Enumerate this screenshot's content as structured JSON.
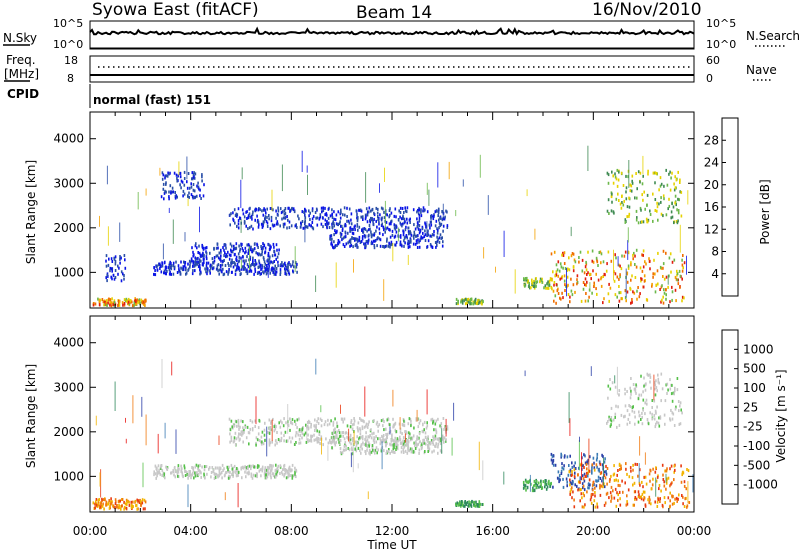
{
  "header": {
    "title": "Syowa East (fitACF)",
    "beam": "Beam 14",
    "date": "16/Nov/2010"
  },
  "top_panels": {
    "nsky_label": "N.Sky",
    "nsky_ticks": [
      "10^5",
      "10^0"
    ],
    "nsearch_label": "N.Search",
    "nsearch_ticks": [
      "10^5",
      "10^0"
    ],
    "freq_label": "Freq.",
    "freq_unit": "[MHz]",
    "freq_ticks": [
      "18",
      "8"
    ],
    "nave_label": "Nave",
    "nave_ticks": [
      "60",
      "0"
    ],
    "cpid_label": "CPID",
    "cpid_text": "normal (fast) 151"
  },
  "x_axis": {
    "ticks": [
      "00:00",
      "04:00",
      "08:00",
      "12:00",
      "16:00",
      "20:00",
      "00:00"
    ],
    "label": "Time UT"
  },
  "y_axis": {
    "label": "Slant Range [km]",
    "ticks": [
      "1000",
      "2000",
      "3000",
      "4000"
    ]
  },
  "colorbars": {
    "power": {
      "label": "Power [dB]",
      "ticks": [
        "4",
        "8",
        "12",
        "16",
        "20",
        "24",
        "28"
      ],
      "colors": [
        "#0a14e6",
        "#2a4fa8",
        "#3f8a52",
        "#6cb84a",
        "#e6d200",
        "#f4a000",
        "#f06e00",
        "#e01e0e"
      ]
    },
    "velocity": {
      "label": "Velocity [m s⁻¹]",
      "ticks": [
        "1000",
        "500",
        "100",
        "25",
        "-25",
        "-100",
        "-500",
        "-1000"
      ],
      "colors": [
        "#2a3fa8",
        "#3a7ab4",
        "#2f8a5c",
        "#56c04a",
        "#c8c8c8",
        "#f2b400",
        "#f07a10",
        "#e83a10",
        "#e81410"
      ]
    }
  },
  "chart_data": [
    {
      "type": "heatmap",
      "title": "Power",
      "xlabel": "Time UT",
      "ylabel": "Slant Range [km]",
      "x_range_hours": [
        0,
        24
      ],
      "ylim": [
        200,
        4600
      ],
      "colorbar_label": "Power [dB]",
      "features": [
        {
          "t_start": 0.1,
          "t_end": 2.2,
          "range_km": 330,
          "band_km": 80,
          "level": "high"
        },
        {
          "t_start": 0.6,
          "t_end": 1.4,
          "range_km": 1100,
          "band_km": 300,
          "level": "low"
        },
        {
          "t_start": 2.5,
          "t_end": 8.2,
          "range_km": 1100,
          "band_km": 150,
          "level": "low"
        },
        {
          "t_start": 4.0,
          "t_end": 7.5,
          "range_km": 1450,
          "band_km": 200,
          "level": "low"
        },
        {
          "t_start": 2.8,
          "t_end": 4.5,
          "range_km": 2950,
          "band_km": 300,
          "level": "low"
        },
        {
          "t_start": 5.5,
          "t_end": 14.2,
          "range_km": 2200,
          "band_km": 250,
          "level": "low"
        },
        {
          "t_start": 9.5,
          "t_end": 14.0,
          "range_km": 1750,
          "band_km": 200,
          "level": "low"
        },
        {
          "t_start": 14.5,
          "t_end": 15.6,
          "range_km": 350,
          "band_km": 60,
          "level": "mid"
        },
        {
          "t_start": 17.2,
          "t_end": 18.3,
          "range_km": 750,
          "band_km": 120,
          "level": "mid"
        },
        {
          "t_start": 18.3,
          "t_end": 23.6,
          "range_km": 900,
          "band_km": 600,
          "level": "high"
        },
        {
          "t_start": 20.5,
          "t_end": 23.5,
          "range_km": 2700,
          "band_km": 600,
          "level": "mid"
        }
      ]
    },
    {
      "type": "heatmap",
      "title": "Velocity",
      "xlabel": "Time UT",
      "ylabel": "Slant Range [km]",
      "x_range_hours": [
        0,
        24
      ],
      "ylim": [
        200,
        4600
      ],
      "colorbar_label": "Velocity [m s⁻¹]",
      "features": [
        {
          "t_start": 0.1,
          "t_end": 2.2,
          "range_km": 380,
          "band_km": 120,
          "level": "negative"
        },
        {
          "t_start": 2.5,
          "t_end": 8.2,
          "range_km": 1100,
          "band_km": 150,
          "level": "near-zero"
        },
        {
          "t_start": 5.5,
          "t_end": 14.2,
          "range_km": 2000,
          "band_km": 300,
          "level": "near-zero"
        },
        {
          "t_start": 9.5,
          "t_end": 14.0,
          "range_km": 1700,
          "band_km": 200,
          "level": "near-zero"
        },
        {
          "t_start": 14.5,
          "t_end": 15.6,
          "range_km": 380,
          "band_km": 60,
          "level": "positive"
        },
        {
          "t_start": 17.2,
          "t_end": 18.3,
          "range_km": 800,
          "band_km": 120,
          "level": "positive"
        },
        {
          "t_start": 18.3,
          "t_end": 20.5,
          "range_km": 1100,
          "band_km": 400,
          "level": "strong-positive"
        },
        {
          "t_start": 19.0,
          "t_end": 23.8,
          "range_km": 800,
          "band_km": 500,
          "level": "negative"
        },
        {
          "t_start": 20.5,
          "t_end": 23.5,
          "range_km": 2700,
          "band_km": 600,
          "level": "near-zero"
        }
      ]
    }
  ]
}
